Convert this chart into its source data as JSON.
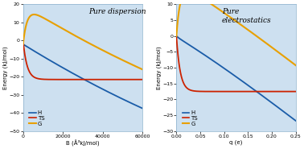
{
  "panel1": {
    "title": "Pure dispersion",
    "xlabel": "B (Å³kJ/mol)",
    "ylabel": "Energy (kJ/mol)",
    "xlim": [
      0,
      60000
    ],
    "ylim": [
      -50,
      20
    ],
    "yticks": [
      -50,
      -40,
      -30,
      -20,
      -10,
      0,
      10,
      20
    ],
    "xticks": [
      0,
      20000,
      40000,
      60000
    ],
    "H_color": "#1a5ca8",
    "TS_color": "#cc2200",
    "G_color": "#e8a000",
    "bg_color": "#cde0f0"
  },
  "panel2": {
    "title": "Pure\nelectrostatics",
    "xlabel": "q (e)",
    "ylabel": "Energy (kJ/mol)",
    "xlim": [
      0.0,
      0.25
    ],
    "ylim": [
      -30,
      10
    ],
    "yticks": [
      -30,
      -25,
      -20,
      -15,
      -10,
      -5,
      0,
      5,
      10
    ],
    "xticks": [
      0.0,
      0.05,
      0.1,
      0.15,
      0.2,
      0.25
    ],
    "H_color": "#1a5ca8",
    "TS_color": "#cc2200",
    "G_color": "#e8a000",
    "bg_color": "#cde0f0"
  }
}
